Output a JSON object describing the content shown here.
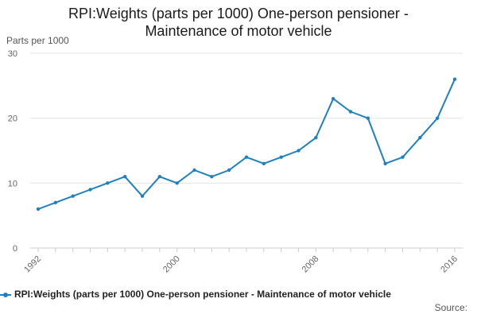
{
  "chart_data": {
    "type": "line",
    "title_lines": [
      "RPI:Weights (parts per 1000) One-person pensioner -",
      "Maintenance of motor vehicle"
    ],
    "ylabel": "Parts per 1000",
    "xlabel": "",
    "ylim": [
      0,
      30
    ],
    "yticks": [
      0,
      10,
      20,
      30
    ],
    "xlim": [
      1992,
      2016
    ],
    "xticks": [
      1992,
      2000,
      2008,
      2016
    ],
    "grid": true,
    "legend_position": "bottom",
    "series": [
      {
        "name": "RPI:Weights (parts per 1000) One-person pensioner - Maintenance of motor vehicle",
        "color": "#1f80bf",
        "x": [
          1992,
          1993,
          1994,
          1995,
          1996,
          1997,
          1998,
          1999,
          2000,
          2001,
          2002,
          2003,
          2004,
          2005,
          2006,
          2007,
          2008,
          2009,
          2010,
          2011,
          2012,
          2013,
          2014,
          2015,
          2016
        ],
        "values": [
          6,
          7,
          8,
          9,
          10,
          11,
          8,
          11,
          10,
          12,
          11,
          12,
          14,
          13,
          14,
          15,
          17,
          23,
          21,
          20,
          13,
          14,
          17,
          20,
          26
        ]
      }
    ]
  },
  "source_label": "Source:"
}
